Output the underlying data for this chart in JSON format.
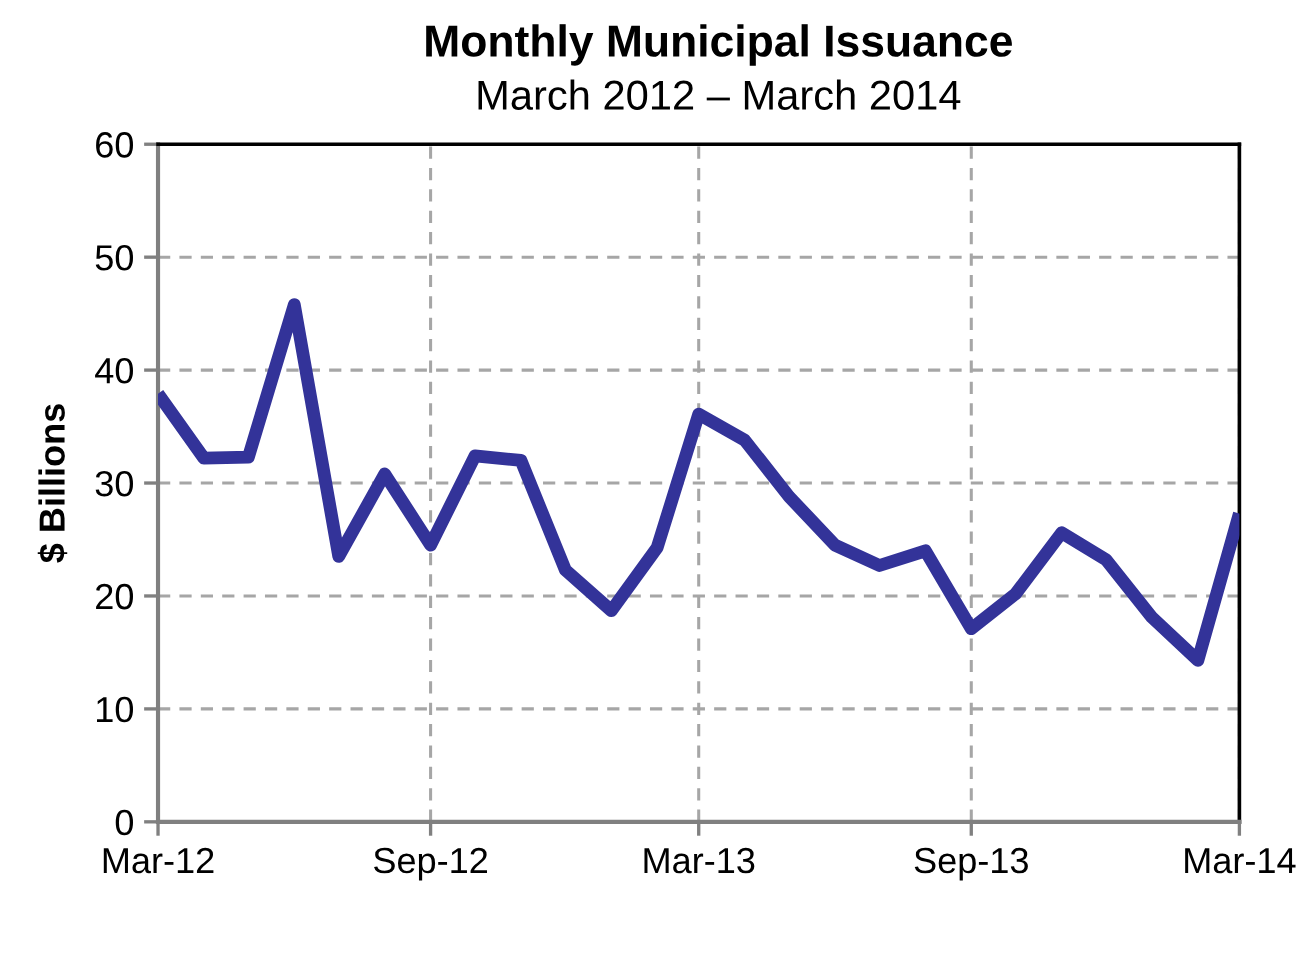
{
  "chart_data": {
    "type": "line",
    "title": "Monthly Municipal Issuance",
    "subtitle": "March 2012 – March 2014",
    "ylabel": "$ Billions",
    "x": [
      "2012-03",
      "2012-04",
      "2012-05",
      "2012-06",
      "2012-07",
      "2012-08",
      "2012-09",
      "2012-10",
      "2012-11",
      "2012-12",
      "2013-01",
      "2013-02",
      "2013-03",
      "2013-04",
      "2013-05",
      "2013-06",
      "2013-07",
      "2013-08",
      "2013-09",
      "2013-10",
      "2013-11",
      "2013-12",
      "2014-01",
      "2014-02",
      "2014-03"
    ],
    "series": [
      {
        "color": "#333399",
        "values": [
          37.9,
          32.2,
          32.3,
          45.8,
          23.5,
          30.8,
          24.5,
          32.4,
          32.0,
          22.3,
          18.7,
          24.3,
          36.1,
          33.8,
          28.8,
          24.5,
          22.7,
          24.0,
          17.1,
          20.2,
          25.6,
          23.2,
          18.1,
          14.3,
          27.3
        ]
      }
    ],
    "xlim": [
      "2012-03",
      "2014-03"
    ],
    "xticks": [
      {
        "value": "2012-03",
        "label": "Mar-12"
      },
      {
        "value": "2012-09",
        "label": "Sep-12"
      },
      {
        "value": "2013-03",
        "label": "Mar-13"
      },
      {
        "value": "2013-09",
        "label": "Sep-13"
      },
      {
        "value": "2014-03",
        "label": "Mar-14"
      }
    ],
    "ylim": [
      0,
      60
    ],
    "yticks": [
      0,
      10,
      20,
      30,
      40,
      50,
      60
    ],
    "grid": true,
    "line_style": "solid",
    "marker": "none"
  }
}
